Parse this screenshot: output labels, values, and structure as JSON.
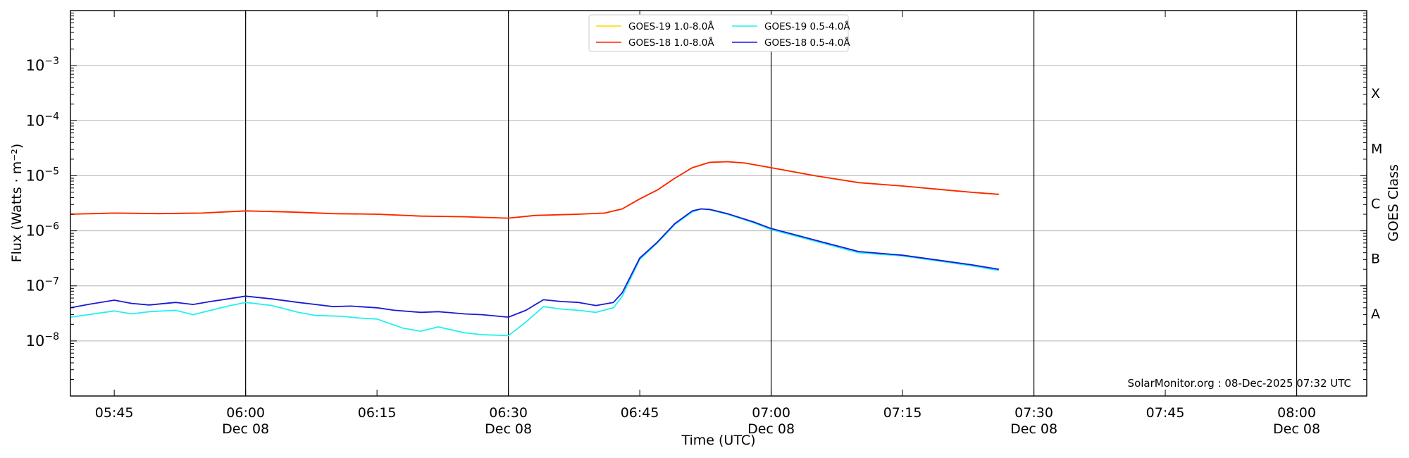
{
  "chart_data": {
    "type": "line",
    "ylabel": "Flux (Watts · m⁻²)",
    "xlabel": "Time (UTC)",
    "right_label": "GOES Class",
    "y_scale": "log",
    "ylim": [
      1e-09,
      0.01
    ],
    "xlim": [
      "05:40",
      "08:08"
    ],
    "y_ticks": [
      {
        "value": 1e-08,
        "base": "10",
        "exp": "−8"
      },
      {
        "value": 1e-07,
        "base": "10",
        "exp": "−7"
      },
      {
        "value": 1e-06,
        "base": "10",
        "exp": "−6"
      },
      {
        "value": 1e-05,
        "base": "10",
        "exp": "−5"
      },
      {
        "value": 0.0001,
        "base": "10",
        "exp": "−4"
      },
      {
        "value": 0.001,
        "base": "10",
        "exp": "−3"
      }
    ],
    "x_ticks": [
      {
        "time": "05:45",
        "label": "05:45",
        "date": ""
      },
      {
        "time": "06:00",
        "label": "06:00",
        "date": "Dec 08"
      },
      {
        "time": "06:15",
        "label": "06:15",
        "date": ""
      },
      {
        "time": "06:30",
        "label": "06:30",
        "date": "Dec 08"
      },
      {
        "time": "06:45",
        "label": "06:45",
        "date": ""
      },
      {
        "time": "07:00",
        "label": "07:00",
        "date": "Dec 08"
      },
      {
        "time": "07:15",
        "label": "07:15",
        "date": ""
      },
      {
        "time": "07:30",
        "label": "07:30",
        "date": "Dec 08"
      },
      {
        "time": "07:45",
        "label": "07:45",
        "date": ""
      },
      {
        "time": "08:00",
        "label": "08:00",
        "date": "Dec 08"
      }
    ],
    "vertical_lines": [
      "06:00",
      "06:30",
      "07:00",
      "07:30",
      "08:00"
    ],
    "goes_classes": [
      {
        "label": "A",
        "value": 3.16e-08
      },
      {
        "label": "B",
        "value": 3.16e-07
      },
      {
        "label": "C",
        "value": 3.16e-06
      },
      {
        "label": "M",
        "value": 3.16e-05
      },
      {
        "label": "X",
        "value": 0.000316
      }
    ],
    "grid": "horizontal",
    "legend": {
      "placement": "top-center",
      "columns": 2,
      "entries": [
        {
          "label": "GOES-19 1.0-8.0Å",
          "color": "#ffd700"
        },
        {
          "label": "GOES-18 1.0-8.0Å",
          "color": "#ff2200"
        },
        {
          "label": "GOES-19 0.5-4.0Å",
          "color": "#22f0f0"
        },
        {
          "label": "GOES-18 0.5-4.0Å",
          "color": "#1a1ad6"
        }
      ]
    },
    "annotation": "SolarMonitor.org : 08-Dec-2025 07:32 UTC",
    "series": [
      {
        "name": "GOES-19 1.0-8.0Å",
        "color": "#ffd700",
        "points": [
          [
            "05:40",
            2e-06
          ],
          [
            "05:45",
            2.1e-06
          ],
          [
            "05:50",
            2.05e-06
          ],
          [
            "05:55",
            2.1e-06
          ],
          [
            "06:00",
            2.3e-06
          ],
          [
            "06:05",
            2.2e-06
          ],
          [
            "06:10",
            2.05e-06
          ],
          [
            "06:15",
            2e-06
          ],
          [
            "06:20",
            1.85e-06
          ],
          [
            "06:25",
            1.8e-06
          ],
          [
            "06:30",
            1.7e-06
          ],
          [
            "06:33",
            1.9e-06
          ],
          [
            "06:38",
            2e-06
          ],
          [
            "06:41",
            2.1e-06
          ],
          [
            "06:43",
            2.5e-06
          ],
          [
            "06:45",
            3.8e-06
          ],
          [
            "06:47",
            5.5e-06
          ],
          [
            "06:49",
            9e-06
          ],
          [
            "06:51",
            1.4e-05
          ],
          [
            "06:53",
            1.75e-05
          ],
          [
            "06:55",
            1.8e-05
          ],
          [
            "06:57",
            1.7e-05
          ],
          [
            "07:00",
            1.4e-05
          ],
          [
            "07:05",
            1e-05
          ],
          [
            "07:10",
            7.5e-06
          ],
          [
            "07:15",
            6.5e-06
          ],
          [
            "07:20",
            5.5e-06
          ],
          [
            "07:23",
            5e-06
          ],
          [
            "07:26",
            4.6e-06
          ]
        ]
      },
      {
        "name": "GOES-18 1.0-8.0Å",
        "color": "#ff2200",
        "points": [
          [
            "05:40",
            2e-06
          ],
          [
            "05:45",
            2.1e-06
          ],
          [
            "05:50",
            2.05e-06
          ],
          [
            "05:55",
            2.1e-06
          ],
          [
            "06:00",
            2.3e-06
          ],
          [
            "06:05",
            2.2e-06
          ],
          [
            "06:10",
            2.05e-06
          ],
          [
            "06:15",
            2e-06
          ],
          [
            "06:20",
            1.85e-06
          ],
          [
            "06:25",
            1.8e-06
          ],
          [
            "06:30",
            1.7e-06
          ],
          [
            "06:33",
            1.9e-06
          ],
          [
            "06:38",
            2e-06
          ],
          [
            "06:41",
            2.1e-06
          ],
          [
            "06:43",
            2.5e-06
          ],
          [
            "06:45",
            3.8e-06
          ],
          [
            "06:47",
            5.5e-06
          ],
          [
            "06:49",
            9e-06
          ],
          [
            "06:51",
            1.4e-05
          ],
          [
            "06:53",
            1.75e-05
          ],
          [
            "06:55",
            1.8e-05
          ],
          [
            "06:57",
            1.7e-05
          ],
          [
            "07:00",
            1.4e-05
          ],
          [
            "07:05",
            1e-05
          ],
          [
            "07:10",
            7.5e-06
          ],
          [
            "07:15",
            6.5e-06
          ],
          [
            "07:20",
            5.5e-06
          ],
          [
            "07:23",
            5e-06
          ],
          [
            "07:26",
            4.6e-06
          ]
        ]
      },
      {
        "name": "GOES-19 0.5-4.0Å",
        "color": "#22f0f0",
        "points": [
          [
            "05:40",
            2.7e-08
          ],
          [
            "05:42",
            3e-08
          ],
          [
            "05:45",
            3.5e-08
          ],
          [
            "05:47",
            3.1e-08
          ],
          [
            "05:49",
            3.4e-08
          ],
          [
            "05:52",
            3.6e-08
          ],
          [
            "05:54",
            3e-08
          ],
          [
            "05:56",
            3.6e-08
          ],
          [
            "05:58",
            4.3e-08
          ],
          [
            "06:00",
            5e-08
          ],
          [
            "06:03",
            4.4e-08
          ],
          [
            "06:06",
            3.3e-08
          ],
          [
            "06:08",
            2.9e-08
          ],
          [
            "06:11",
            2.8e-08
          ],
          [
            "06:13",
            2.6e-08
          ],
          [
            "06:15",
            2.5e-08
          ],
          [
            "06:18",
            1.7e-08
          ],
          [
            "06:20",
            1.5e-08
          ],
          [
            "06:22",
            1.8e-08
          ],
          [
            "06:25",
            1.4e-08
          ],
          [
            "06:27",
            1.3e-08
          ],
          [
            "06:30",
            1.25e-08
          ],
          [
            "06:32",
            2.2e-08
          ],
          [
            "06:34",
            4.2e-08
          ],
          [
            "06:36",
            3.8e-08
          ],
          [
            "06:38",
            3.6e-08
          ],
          [
            "06:40",
            3.3e-08
          ],
          [
            "06:42",
            4e-08
          ],
          [
            "06:43",
            6.5e-08
          ],
          [
            "06:45",
            3e-07
          ],
          [
            "06:47",
            6e-07
          ],
          [
            "06:49",
            1.3e-06
          ],
          [
            "06:51",
            2.2e-06
          ],
          [
            "06:52",
            2.5e-06
          ],
          [
            "06:53",
            2.4e-06
          ],
          [
            "06:55",
            2e-06
          ],
          [
            "06:58",
            1.4e-06
          ],
          [
            "07:00",
            1.05e-06
          ],
          [
            "07:05",
            6.5e-07
          ],
          [
            "07:10",
            4e-07
          ],
          [
            "07:15",
            3.5e-07
          ],
          [
            "07:20",
            2.7e-07
          ],
          [
            "07:23",
            2.3e-07
          ],
          [
            "07:26",
            1.9e-07
          ]
        ]
      },
      {
        "name": "GOES-18 0.5-4.0Å",
        "color": "#1a1ad6",
        "points": [
          [
            "05:40",
            4e-08
          ],
          [
            "05:42",
            4.6e-08
          ],
          [
            "05:45",
            5.5e-08
          ],
          [
            "05:47",
            4.8e-08
          ],
          [
            "05:49",
            4.5e-08
          ],
          [
            "05:52",
            5e-08
          ],
          [
            "05:54",
            4.6e-08
          ],
          [
            "05:56",
            5.2e-08
          ],
          [
            "05:58",
            5.8e-08
          ],
          [
            "06:00",
            6.5e-08
          ],
          [
            "06:03",
            5.8e-08
          ],
          [
            "06:06",
            5e-08
          ],
          [
            "06:08",
            4.6e-08
          ],
          [
            "06:10",
            4.2e-08
          ],
          [
            "06:12",
            4.3e-08
          ],
          [
            "06:15",
            4e-08
          ],
          [
            "06:17",
            3.6e-08
          ],
          [
            "06:20",
            3.3e-08
          ],
          [
            "06:22",
            3.4e-08
          ],
          [
            "06:25",
            3.1e-08
          ],
          [
            "06:27",
            3e-08
          ],
          [
            "06:30",
            2.7e-08
          ],
          [
            "06:32",
            3.6e-08
          ],
          [
            "06:34",
            5.6e-08
          ],
          [
            "06:36",
            5.2e-08
          ],
          [
            "06:38",
            5e-08
          ],
          [
            "06:40",
            4.4e-08
          ],
          [
            "06:42",
            5e-08
          ],
          [
            "06:43",
            7.5e-08
          ],
          [
            "06:45",
            3.2e-07
          ],
          [
            "06:47",
            6.2e-07
          ],
          [
            "06:49",
            1.35e-06
          ],
          [
            "06:51",
            2.3e-06
          ],
          [
            "06:52",
            2.5e-06
          ],
          [
            "06:53",
            2.45e-06
          ],
          [
            "06:55",
            2.05e-06
          ],
          [
            "06:58",
            1.45e-06
          ],
          [
            "07:00",
            1.1e-06
          ],
          [
            "07:05",
            6.8e-07
          ],
          [
            "07:10",
            4.2e-07
          ],
          [
            "07:15",
            3.6e-07
          ],
          [
            "07:20",
            2.8e-07
          ],
          [
            "07:23",
            2.4e-07
          ],
          [
            "07:26",
            2e-07
          ]
        ]
      }
    ]
  }
}
